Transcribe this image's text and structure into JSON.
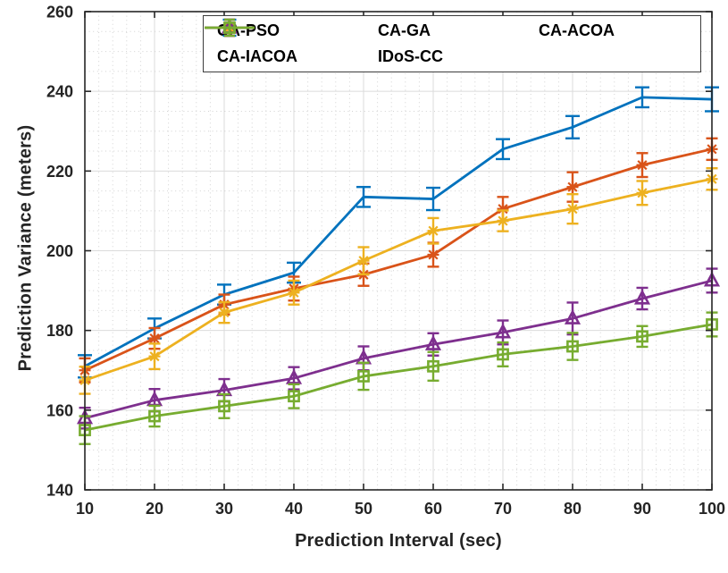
{
  "chart_data": {
    "type": "line",
    "title": "",
    "xlabel": "Prediction Interval (sec)",
    "ylabel": "Prediction Variance (meters)",
    "xlim": [
      10,
      100
    ],
    "ylim": [
      140,
      260
    ],
    "x_ticks": [
      10,
      20,
      30,
      40,
      50,
      60,
      70,
      80,
      90,
      100
    ],
    "y_ticks": [
      140,
      160,
      180,
      200,
      220,
      240,
      260
    ],
    "grid": "major-solid-and-minor-dotted",
    "minor_x_step": 2,
    "minor_y_step": 5,
    "legend_position": "top-inside-two-rows",
    "legend_rows": [
      [
        0,
        1,
        2
      ],
      [
        3,
        4
      ]
    ],
    "x": [
      10,
      20,
      30,
      40,
      50,
      60,
      70,
      80,
      90,
      100
    ],
    "series": [
      {
        "name": "CA-PSO",
        "color": "#0072BD",
        "marker": "errorbar-only",
        "values": [
          171,
          180.5,
          189,
          194.5,
          213.5,
          213,
          225.5,
          231,
          238.5,
          238
        ],
        "errors": [
          2.8,
          2.5,
          2.5,
          2.5,
          2.5,
          2.8,
          2.5,
          2.8,
          2.5,
          3
        ]
      },
      {
        "name": "CA-GA",
        "color": "#D95319",
        "marker": "asterisk",
        "values": [
          170,
          178,
          186.5,
          190.5,
          194,
          199,
          210.5,
          216,
          221.5,
          225.5
        ],
        "errors": [
          3,
          2.6,
          2.5,
          3,
          2.8,
          3,
          3,
          3.7,
          3,
          2.7
        ]
      },
      {
        "name": "CA-ACOA",
        "color": "#EDB120",
        "marker": "asterisk",
        "values": [
          167.5,
          173.5,
          184.5,
          189.5,
          197.5,
          205,
          207.5,
          210.5,
          214.5,
          218
        ],
        "errors": [
          3.4,
          3.2,
          2.6,
          3,
          3.4,
          3.2,
          2.6,
          3.7,
          3,
          2.7
        ]
      },
      {
        "name": "CA-IACOA",
        "color": "#7E2F8E",
        "marker": "triangle-up",
        "values": [
          158,
          162.5,
          165,
          168,
          173,
          176.5,
          179.5,
          183,
          188,
          192.5
        ],
        "errors": [
          2.6,
          2.8,
          2.8,
          2.8,
          3,
          2.8,
          3,
          4,
          2.7,
          3
        ]
      },
      {
        "name": "IDoS-CC",
        "color": "#77AC30",
        "marker": "square",
        "values": [
          155,
          158.5,
          161,
          163.5,
          168.5,
          171,
          174,
          176,
          178.5,
          181.5
        ],
        "errors": [
          3.5,
          2.6,
          3,
          3,
          3.4,
          3.6,
          3,
          3.4,
          2.6,
          3
        ]
      }
    ],
    "axis_color": "#262626",
    "text_color": "#242424",
    "major_grid_color": "#dbdbdb",
    "minor_grid_color": "#d2d2d2"
  }
}
